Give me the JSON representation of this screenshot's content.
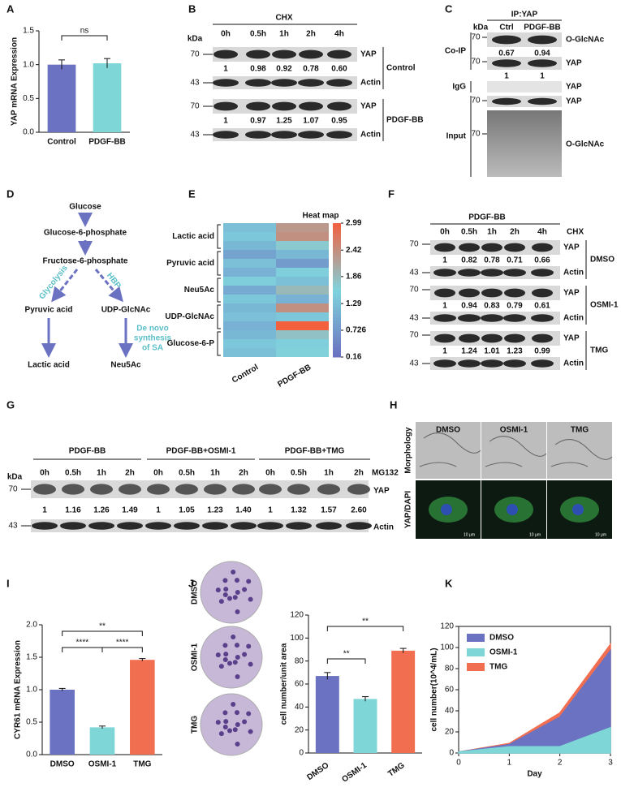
{
  "panel_labels": [
    "A",
    "B",
    "C",
    "D",
    "E",
    "F",
    "G",
    "H",
    "I",
    "J",
    "K"
  ],
  "blot_b": {
    "header": "CHX",
    "kda": "kDa",
    "lanes": [
      "0h",
      "0.5h",
      "1h",
      "2h",
      "4h"
    ],
    "markers": [
      "70",
      "43"
    ],
    "bands": [
      "YAP",
      "Actin"
    ],
    "groups": [
      {
        "name": "Control",
        "ratios": [
          "1",
          "0.98",
          "0.92",
          "0.78",
          "0.60"
        ]
      },
      {
        "name": "PDGF-BB",
        "ratios": [
          "1",
          "0.97",
          "1.25",
          "1.07",
          "0.95"
        ]
      }
    ]
  },
  "blot_c": {
    "header": "IP:YAP",
    "kda": "kDa",
    "lanes": [
      "Ctrl",
      "PDGF-BB"
    ],
    "sections": [
      "Co-IP",
      "IgG",
      "Input"
    ],
    "markers": [
      "70",
      "70",
      "70",
      "70"
    ],
    "bands": [
      "O-GlcNAc",
      "YAP",
      "YAP",
      "YAP",
      "O-GlcNAc"
    ],
    "ratios": [
      [
        "0.67",
        "0.94"
      ],
      [
        "1",
        "1"
      ]
    ]
  },
  "diagram_d": {
    "nodes": [
      "Glucose",
      "Glucose-6-phosphate",
      "Fructose-6-phosphate",
      "Pyruvic acid",
      "UDP-GlcNAc",
      "Lactic acid",
      "Neu5Ac"
    ],
    "pathways": [
      "Glycolysis",
      "HBP"
    ],
    "note": [
      "De novo",
      "synthesis",
      "of SA"
    ]
  },
  "blot_f": {
    "header": "PDGF-BB",
    "treatment": "CHX",
    "lanes": [
      "0h",
      "0.5h",
      "1h",
      "2h",
      "4h"
    ],
    "markers": [
      "70",
      "43"
    ],
    "bands": [
      "YAP",
      "Actin"
    ],
    "groups": [
      {
        "name": "DMSO",
        "ratios": [
          "1",
          "0.82",
          "0.78",
          "0.71",
          "0.66"
        ]
      },
      {
        "name": "OSMI-1",
        "ratios": [
          "1",
          "0.94",
          "0.83",
          "0.79",
          "0.61"
        ]
      },
      {
        "name": "TMG",
        "ratios": [
          "1",
          "1.24",
          "1.01",
          "1.23",
          "0.99"
        ]
      }
    ]
  },
  "blot_g": {
    "groups": [
      "PDGF-BB",
      "PDGF-BB+OSMI-1",
      "PDGF-BB+TMG"
    ],
    "lanes": [
      "0h",
      "0.5h",
      "1h",
      "2h"
    ],
    "treatment": "MG132",
    "kda": "kDa",
    "markers": [
      "70",
      "43"
    ],
    "bands": [
      "YAP",
      "Actin"
    ],
    "ratios": [
      "1",
      "1.16",
      "1.26",
      "1.49",
      "1",
      "1.05",
      "1.23",
      "1.40",
      "1",
      "1.32",
      "1.57",
      "2.60"
    ]
  },
  "panel_h": {
    "columns": [
      "DMSO",
      "OSMI-1",
      "TMG"
    ],
    "rows": [
      "Morphology",
      "YAP/DAPI"
    ],
    "scale": "10 μm"
  },
  "panel_j": {
    "rows": [
      "DMSO",
      "OSMI-1",
      "TMG"
    ]
  },
  "chart_data": [
    {
      "type": "bar",
      "ylabel": "YAP mRNA Expression",
      "categories": [
        "Control",
        "PDGF-BB"
      ],
      "values": [
        1.0,
        1.02
      ],
      "errors": [
        0.07,
        0.07
      ],
      "colors": [
        "#6b72c1",
        "#7fd6d6"
      ],
      "ylim": [
        0,
        1.5
      ],
      "yticks": [
        {
          "value": 0,
          "label": "0.0"
        },
        {
          "value": 0.5,
          "label": "0.5"
        },
        {
          "value": 1,
          "label": "1.0"
        },
        {
          "value": 1.5,
          "label": "1.5"
        }
      ],
      "annotations": [
        "ns"
      ]
    },
    {
      "type": "heatmap",
      "title": "Heat map",
      "categories": [
        "Control",
        "PDGF-BB"
      ],
      "row_groups": [
        "Lactic acid",
        "Pyruvic acid",
        "Neu5Ac",
        "UDP-GlcNAc",
        "Glucose-6-P"
      ],
      "values": [
        [
          1.3,
          1.4,
          1.2,
          0.9,
          1.3,
          1.1,
          1.5,
          1.0,
          1.4,
          1.2,
          1.3,
          1.1,
          1.2,
          1.4,
          1.3
        ],
        [
          2.3,
          2.4,
          1.7,
          1.2,
          0.8,
          1.5,
          1.3,
          1.9,
          1.1,
          2.4,
          1.4,
          2.99,
          1.8,
          1.5,
          1.6
        ]
      ],
      "colors": [
        "#6a6fc0",
        "#7fd3dd",
        "#f2603e"
      ],
      "clim": [
        0.16,
        2.99
      ],
      "cticks": [
        0.16,
        0.726,
        1.29,
        1.86,
        2.42,
        2.99
      ]
    },
    {
      "type": "bar",
      "ylabel": "CYR61 mRNA Expression",
      "categories": [
        "DMSO",
        "OSMI-1",
        "TMG"
      ],
      "values": [
        1.0,
        0.42,
        1.46
      ],
      "errors": [
        0.02,
        0.02,
        0.02
      ],
      "colors": [
        "#6b72c1",
        "#7fd6d6",
        "#f26e50"
      ],
      "ylim": [
        0,
        2
      ],
      "yticks": [
        {
          "value": 0,
          "label": "0.0"
        },
        {
          "value": 0.5,
          "label": "0.5"
        },
        {
          "value": 1,
          "label": "1.0"
        },
        {
          "value": 1.5,
          "label": "1.5"
        },
        {
          "value": 2,
          "label": "2.0"
        }
      ],
      "annotations": [
        "**",
        "****",
        "****"
      ]
    },
    {
      "type": "bar",
      "ylabel": "cell number/unit area",
      "categories": [
        "DMSO",
        "OSMI-1",
        "TMG"
      ],
      "values": [
        67,
        47,
        89
      ],
      "errors": [
        3,
        2,
        2
      ],
      "colors": [
        "#6b72c1",
        "#7fd6d6",
        "#f26e50"
      ],
      "ylim": [
        0,
        120
      ],
      "yticks": [
        0,
        20,
        40,
        60,
        80,
        100,
        120
      ],
      "annotations": [
        "**",
        "**"
      ]
    },
    {
      "type": "area",
      "xlabel": "Day",
      "ylabel": "cell number(10^4/mL)",
      "x": [
        0,
        1,
        2,
        3
      ],
      "series": [
        {
          "name": "DMSO",
          "color": "#6b72c1",
          "values": [
            1,
            8,
            34,
            97
          ]
        },
        {
          "name": "OSMI-1",
          "color": "#7fd6d6",
          "values": [
            1,
            6,
            6,
            24
          ]
        },
        {
          "name": "TMG",
          "color": "#f26e50",
          "values": [
            1,
            9,
            38,
            103
          ]
        }
      ],
      "xlim": [
        0,
        3
      ],
      "xticks": [
        0,
        1,
        2,
        3
      ],
      "ylim": [
        0,
        120
      ],
      "yticks": [
        0,
        20,
        40,
        60,
        80,
        100,
        120
      ],
      "legend": "upper left"
    }
  ]
}
